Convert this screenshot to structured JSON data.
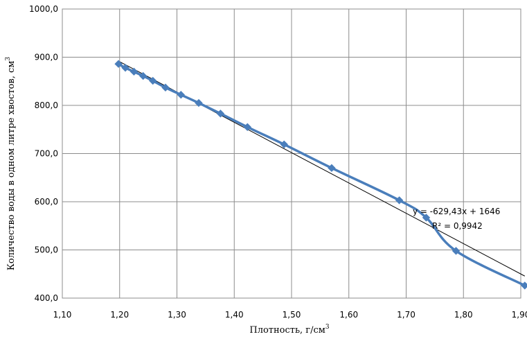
{
  "chart_data": {
    "type": "scatter",
    "title": "",
    "xlabel": "Плотность, г/см",
    "xlabel_sup": "3",
    "ylabel": "Количество воды в одном литре хвостов, см",
    "ylabel_sup": "3",
    "xlim": [
      1.1,
      1.9
    ],
    "ylim": [
      400,
      1000
    ],
    "x_ticks": [
      "1,10",
      "1,20",
      "1,30",
      "1,40",
      "1,50",
      "1,60",
      "1,70",
      "1,80",
      "1,90"
    ],
    "y_ticks": [
      "400,0",
      "500,0",
      "600,0",
      "700,0",
      "800,0",
      "900,0",
      "1000,0"
    ],
    "grid": true,
    "series": [
      {
        "color": "#4a7ebb",
        "marker": "diamond",
        "smoothed": true,
        "points": [
          {
            "x": 1.198,
            "y": 886
          },
          {
            "x": 1.21,
            "y": 878
          },
          {
            "x": 1.225,
            "y": 870
          },
          {
            "x": 1.241,
            "y": 861
          },
          {
            "x": 1.258,
            "y": 851
          },
          {
            "x": 1.28,
            "y": 837
          },
          {
            "x": 1.307,
            "y": 822
          },
          {
            "x": 1.338,
            "y": 805
          },
          {
            "x": 1.376,
            "y": 783
          },
          {
            "x": 1.423,
            "y": 755
          },
          {
            "x": 1.487,
            "y": 719
          },
          {
            "x": 1.57,
            "y": 670
          },
          {
            "x": 1.688,
            "y": 603
          },
          {
            "x": 1.735,
            "y": 567
          },
          {
            "x": 1.787,
            "y": 498
          },
          {
            "x": 1.907,
            "y": 426
          }
        ]
      }
    ],
    "trendline": {
      "type": "linear",
      "color": "#000000",
      "slope": -629.43,
      "intercept": 1646,
      "x_range": [
        1.198,
        1.907
      ],
      "equation": "y = -629,43x + 1646",
      "r2_label": "R² = 0,9942"
    }
  }
}
